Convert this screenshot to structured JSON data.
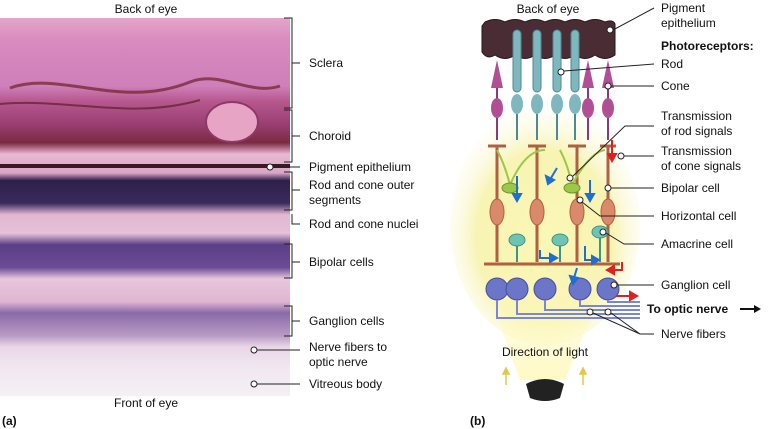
{
  "panel_a": {
    "panel_label": "(a)",
    "top_label": "Back of eye",
    "bottom_label": "Front of eye",
    "labels": {
      "sclera": "Sclera",
      "choroid": "Choroid",
      "pigment_epithelium": "Pigment epithelium",
      "outer_segments_1": "Rod and cone outer",
      "outer_segments_2": "segments",
      "nuclei": "Rod and cone nuclei",
      "bipolar": "Bipolar cells",
      "ganglion": "Ganglion cells",
      "nerve_fibers_1": "Nerve fibers to",
      "nerve_fibers_2": "optic nerve",
      "vitreous": "Vitreous body"
    }
  },
  "panel_b": {
    "panel_label": "(b)",
    "top_label": "Back of eye",
    "labels": {
      "pigment_1": "Pigment",
      "pigment_2": "epithelium",
      "photoreceptors": "Photoreceptors:",
      "rod": "Rod",
      "cone": "Cone",
      "rod_signals_1": "Transmission",
      "rod_signals_2": "of rod signals",
      "cone_signals_1": "Transmission",
      "cone_signals_2": "of cone signals",
      "bipolar": "Bipolar cell",
      "horizontal": "Horizontal cell",
      "amacrine": "Amacrine cell",
      "ganglion": "Ganglion cell",
      "optic_nerve": "To optic nerve",
      "nerve_fibers": "Nerve fibers",
      "light": "Direction of light"
    },
    "colors": {
      "pigment": "#4a2c34",
      "rod": "#7fb7bf",
      "cone": "#b14f95",
      "bipolar": "#d98a6a",
      "horizontal": "#9cc84a",
      "amacrine": "#6fc3b3",
      "ganglion": "#6c76c9",
      "rod_arrow": "#1e6fd0",
      "cone_arrow": "#e02020",
      "light": "#f2ef9a"
    }
  }
}
